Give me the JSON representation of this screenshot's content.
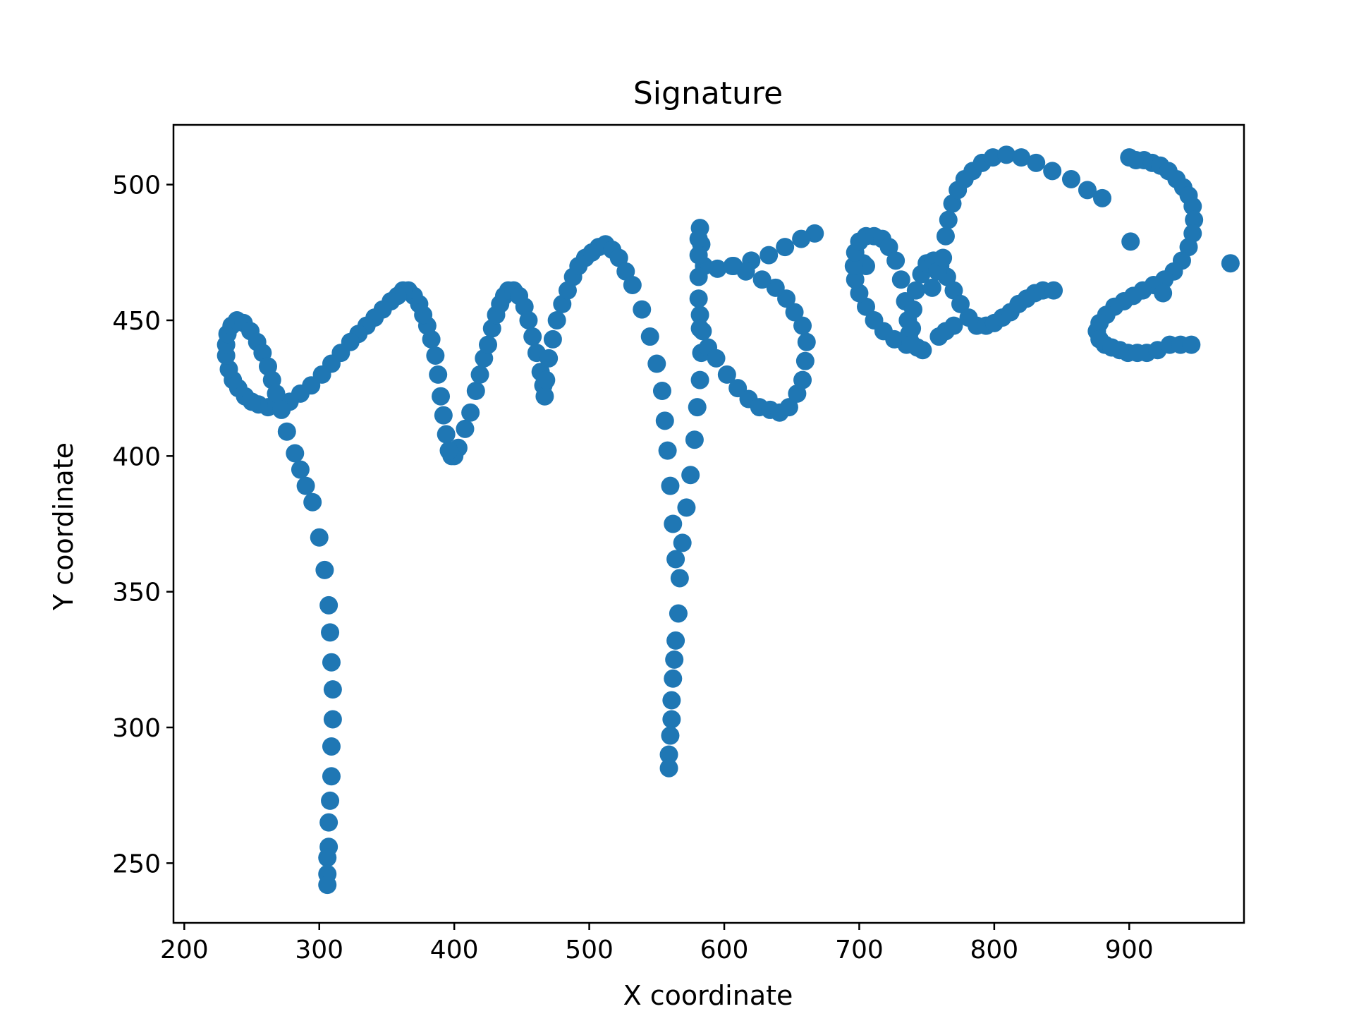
{
  "chart_data": {
    "type": "scatter",
    "title": "Signature",
    "xlabel": "X coordinate",
    "ylabel": "Y coordinate",
    "xlim": [
      192,
      985
    ],
    "ylim": [
      228,
      522
    ],
    "xticks": [
      200,
      300,
      400,
      500,
      600,
      700,
      800,
      900
    ],
    "yticks": [
      250,
      300,
      350,
      400,
      450,
      500
    ],
    "grid": false,
    "color": "#1f77b4",
    "series": [
      {
        "points": [
          [
            667,
            482
          ],
          [
            657,
            480
          ],
          [
            645,
            477
          ],
          [
            633,
            474
          ],
          [
            620,
            472
          ],
          [
            607,
            470
          ],
          [
            595,
            469
          ],
          [
            585,
            470
          ],
          [
            583,
            478
          ],
          [
            582,
            484
          ],
          [
            581,
            480
          ],
          [
            581,
            474
          ],
          [
            581,
            466
          ],
          [
            581,
            458
          ],
          [
            582,
            452
          ],
          [
            582,
            447
          ],
          [
            583,
            438
          ],
          [
            582,
            428
          ],
          [
            580,
            418
          ],
          [
            578,
            406
          ],
          [
            575,
            393
          ],
          [
            572,
            381
          ],
          [
            569,
            368
          ],
          [
            567,
            355
          ],
          [
            566,
            342
          ],
          [
            564,
            332
          ],
          [
            563,
            325
          ],
          [
            562,
            318
          ],
          [
            561,
            310
          ],
          [
            561,
            303
          ],
          [
            560,
            297
          ],
          [
            559,
            290
          ],
          [
            559,
            285
          ],
          [
            584,
            446
          ],
          [
            588,
            440
          ],
          [
            594,
            436
          ],
          [
            602,
            430
          ],
          [
            610,
            425
          ],
          [
            618,
            421
          ],
          [
            626,
            418
          ],
          [
            634,
            417
          ],
          [
            641,
            416
          ],
          [
            648,
            418
          ],
          [
            654,
            423
          ],
          [
            658,
            428
          ],
          [
            660,
            435
          ],
          [
            661,
            442
          ],
          [
            658,
            448
          ],
          [
            652,
            453
          ],
          [
            646,
            458
          ],
          [
            638,
            462
          ],
          [
            628,
            465
          ],
          [
            616,
            468
          ],
          [
            606,
            470
          ],
          [
            400,
            400
          ],
          [
            403,
            403
          ],
          [
            408,
            410
          ],
          [
            412,
            416
          ],
          [
            416,
            424
          ],
          [
            419,
            430
          ],
          [
            422,
            436
          ],
          [
            425,
            441
          ],
          [
            428,
            447
          ],
          [
            431,
            452
          ],
          [
            434,
            456
          ],
          [
            437,
            459
          ],
          [
            440,
            461
          ],
          [
            444,
            461
          ],
          [
            448,
            459
          ],
          [
            452,
            455
          ],
          [
            455,
            450
          ],
          [
            458,
            444
          ],
          [
            461,
            438
          ],
          [
            464,
            431
          ],
          [
            466,
            426
          ],
          [
            467,
            422
          ],
          [
            468,
            428
          ],
          [
            470,
            436
          ],
          [
            473,
            443
          ],
          [
            476,
            450
          ],
          [
            480,
            456
          ],
          [
            484,
            461
          ],
          [
            488,
            466
          ],
          [
            492,
            470
          ],
          [
            497,
            473
          ],
          [
            502,
            475
          ],
          [
            507,
            477
          ],
          [
            512,
            478
          ],
          [
            517,
            476
          ],
          [
            522,
            473
          ],
          [
            527,
            468
          ],
          [
            532,
            463
          ],
          [
            539,
            454
          ],
          [
            545,
            444
          ],
          [
            550,
            434
          ],
          [
            554,
            424
          ],
          [
            556,
            413
          ],
          [
            558,
            402
          ],
          [
            560,
            389
          ],
          [
            562,
            375
          ],
          [
            564,
            362
          ],
          [
            398,
            400
          ],
          [
            396,
            402
          ],
          [
            394,
            408
          ],
          [
            392,
            415
          ],
          [
            390,
            422
          ],
          [
            388,
            430
          ],
          [
            386,
            437
          ],
          [
            383,
            443
          ],
          [
            380,
            448
          ],
          [
            377,
            452
          ],
          [
            374,
            456
          ],
          [
            370,
            459
          ],
          [
            366,
            461
          ],
          [
            362,
            461
          ],
          [
            358,
            459
          ],
          [
            353,
            457
          ],
          [
            347,
            454
          ],
          [
            341,
            451
          ],
          [
            335,
            448
          ],
          [
            329,
            445
          ],
          [
            323,
            442
          ],
          [
            316,
            438
          ],
          [
            309,
            434
          ],
          [
            302,
            430
          ],
          [
            294,
            426
          ],
          [
            286,
            423
          ],
          [
            278,
            420
          ],
          [
            270,
            419
          ],
          [
            262,
            418
          ],
          [
            255,
            419
          ],
          [
            250,
            420
          ],
          [
            245,
            422
          ],
          [
            240,
            425
          ],
          [
            236,
            428
          ],
          [
            233,
            432
          ],
          [
            231,
            437
          ],
          [
            231,
            441
          ],
          [
            232,
            445
          ],
          [
            235,
            448
          ],
          [
            239,
            450
          ],
          [
            244,
            449
          ],
          [
            249,
            446
          ],
          [
            254,
            442
          ],
          [
            258,
            438
          ],
          [
            262,
            433
          ],
          [
            265,
            428
          ],
          [
            268,
            423
          ],
          [
            272,
            417
          ],
          [
            276,
            409
          ],
          [
            282,
            401
          ],
          [
            286,
            395
          ],
          [
            290,
            389
          ],
          [
            295,
            383
          ],
          [
            300,
            370
          ],
          [
            304,
            358
          ],
          [
            307,
            345
          ],
          [
            308,
            335
          ],
          [
            309,
            324
          ],
          [
            310,
            314
          ],
          [
            310,
            303
          ],
          [
            309,
            293
          ],
          [
            309,
            282
          ],
          [
            308,
            273
          ],
          [
            307,
            265
          ],
          [
            307,
            256
          ],
          [
            306,
            252
          ],
          [
            306,
            246
          ],
          [
            306,
            242
          ],
          [
            703,
            471
          ],
          [
            705,
            470
          ],
          [
            747,
            439
          ],
          [
            743,
            440
          ],
          [
            735,
            441
          ],
          [
            726,
            443
          ],
          [
            718,
            446
          ],
          [
            711,
            450
          ],
          [
            705,
            455
          ],
          [
            700,
            460
          ],
          [
            697,
            465
          ],
          [
            696,
            470
          ],
          [
            697,
            475
          ],
          [
            700,
            479
          ],
          [
            705,
            481
          ],
          [
            711,
            481
          ],
          [
            717,
            480
          ],
          [
            722,
            477
          ],
          [
            727,
            472
          ],
          [
            731,
            465
          ],
          [
            734,
            457
          ],
          [
            736,
            450
          ],
          [
            737,
            445
          ],
          [
            738,
            442
          ],
          [
            739,
            447
          ],
          [
            740,
            454
          ],
          [
            742,
            461
          ],
          [
            746,
            467
          ],
          [
            750,
            471
          ],
          [
            755,
            472
          ],
          [
            760,
            470
          ],
          [
            765,
            466
          ],
          [
            770,
            461
          ],
          [
            775,
            456
          ],
          [
            781,
            451
          ],
          [
            787,
            448
          ],
          [
            794,
            448
          ],
          [
            800,
            449
          ],
          [
            806,
            451
          ],
          [
            812,
            453
          ],
          [
            818,
            456
          ],
          [
            824,
            458
          ],
          [
            830,
            460
          ],
          [
            836,
            461
          ],
          [
            844,
            461
          ],
          [
            754,
            462
          ],
          [
            758,
            468
          ],
          [
            762,
            473
          ],
          [
            764,
            481
          ],
          [
            766,
            487
          ],
          [
            769,
            493
          ],
          [
            773,
            498
          ],
          [
            778,
            502
          ],
          [
            784,
            505
          ],
          [
            791,
            508
          ],
          [
            799,
            510
          ],
          [
            809,
            511
          ],
          [
            820,
            510
          ],
          [
            831,
            508
          ],
          [
            843,
            505
          ],
          [
            857,
            502
          ],
          [
            869,
            498
          ],
          [
            880,
            495
          ],
          [
            759,
            444
          ],
          [
            764,
            446
          ],
          [
            770,
            448
          ],
          [
            900,
            510
          ],
          [
            905,
            509
          ],
          [
            911,
            509
          ],
          [
            917,
            508
          ],
          [
            923,
            507
          ],
          [
            929,
            505
          ],
          [
            935,
            502
          ],
          [
            940,
            499
          ],
          [
            944,
            496
          ],
          [
            947,
            492
          ],
          [
            948,
            487
          ],
          [
            947,
            482
          ],
          [
            944,
            477
          ],
          [
            939,
            472
          ],
          [
            933,
            468
          ],
          [
            926,
            465
          ],
          [
            918,
            463
          ],
          [
            910,
            461
          ],
          [
            903,
            459
          ],
          [
            896,
            457
          ],
          [
            889,
            455
          ],
          [
            883,
            452
          ],
          [
            878,
            449
          ],
          [
            876,
            446
          ],
          [
            878,
            443
          ],
          [
            882,
            441
          ],
          [
            887,
            440
          ],
          [
            893,
            439
          ],
          [
            899,
            438
          ],
          [
            906,
            438
          ],
          [
            913,
            438
          ],
          [
            921,
            439
          ],
          [
            930,
            441
          ],
          [
            938,
            441
          ],
          [
            946,
            441
          ],
          [
            901,
            479
          ],
          [
            925,
            460
          ],
          [
            975,
            471
          ]
        ]
      }
    ]
  }
}
